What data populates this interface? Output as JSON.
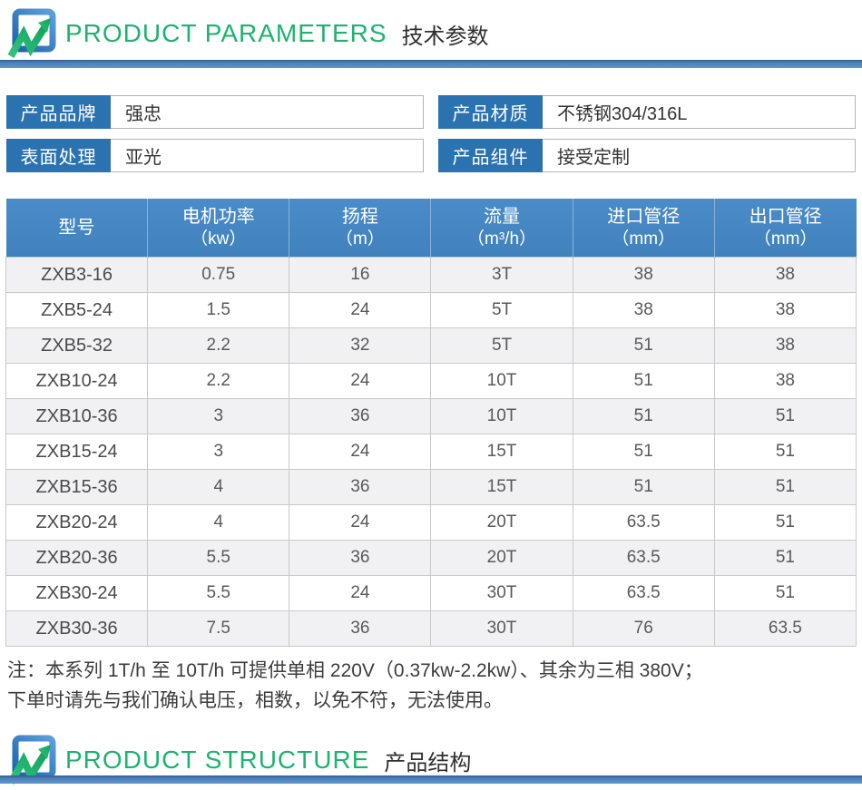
{
  "headers": {
    "parameters": {
      "en": "PRODUCT PARAMETERS",
      "zh": "技术参数"
    },
    "structure": {
      "en": "PRODUCT STRUCTURE",
      "zh": "产品结构"
    }
  },
  "icons": {
    "brand_logo": "blue-rounded-square-with-green-zigzag-arrow"
  },
  "colors": {
    "accent_green": "#1db36e",
    "label_blue": "#2b72b1",
    "table_header_blue": "#4182bd",
    "divider_blue": "#4c80b6",
    "alt_row_gray": "#f1f1f3"
  },
  "info_fields": [
    {
      "label": "产品品牌",
      "value": "强忠"
    },
    {
      "label": "产品材质",
      "value": "不锈钢304/316L"
    },
    {
      "label": "表面处理",
      "value": "亚光"
    },
    {
      "label": "产品组件",
      "value": "接受定制"
    }
  ],
  "spec_table": {
    "columns": [
      {
        "name": "型号",
        "unit": ""
      },
      {
        "name": "电机功率",
        "unit": "（kw）"
      },
      {
        "name": "扬程",
        "unit": "（m）"
      },
      {
        "name": "流量",
        "unit": "（m³/h）"
      },
      {
        "name": "进口管径",
        "unit": "（mm）"
      },
      {
        "name": "出口管径",
        "unit": "（mm）"
      }
    ],
    "rows": [
      [
        "ZXB3-16",
        "0.75",
        "16",
        "3T",
        "38",
        "38"
      ],
      [
        "ZXB5-24",
        "1.5",
        "24",
        "5T",
        "38",
        "38"
      ],
      [
        "ZXB5-32",
        "2.2",
        "32",
        "5T",
        "51",
        "38"
      ],
      [
        "ZXB10-24",
        "2.2",
        "24",
        "10T",
        "51",
        "38"
      ],
      [
        "ZXB10-36",
        "3",
        "36",
        "10T",
        "51",
        "51"
      ],
      [
        "ZXB15-24",
        "3",
        "24",
        "15T",
        "51",
        "51"
      ],
      [
        "ZXB15-36",
        "4",
        "36",
        "15T",
        "51",
        "51"
      ],
      [
        "ZXB20-24",
        "4",
        "24",
        "20T",
        "63.5",
        "51"
      ],
      [
        "ZXB20-36",
        "5.5",
        "36",
        "20T",
        "63.5",
        "51"
      ],
      [
        "ZXB30-24",
        "5.5",
        "24",
        "30T",
        "63.5",
        "51"
      ],
      [
        "ZXB30-36",
        "7.5",
        "36",
        "30T",
        "76",
        "63.5"
      ]
    ]
  },
  "note": {
    "line1": "注：本系列 1T/h 至 10T/h 可提供单相 220V（0.37kw-2.2kw）、其余为三相 380V；",
    "line2": "下单时请先与我们确认电压，相数，以免不符，无法使用。"
  }
}
